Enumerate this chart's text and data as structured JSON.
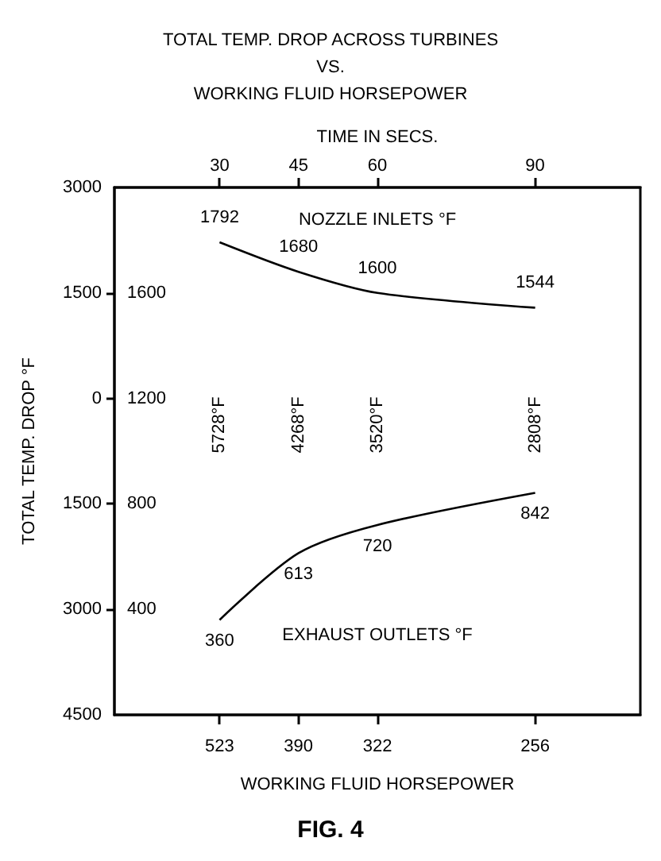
{
  "chart_data": {
    "type": "line",
    "title": "TOTAL TEMP. DROP ACROSS TURBINES\nVS.\nWORKING FLUID HORSEPOWER",
    "xlabel": "TIME IN SECS.",
    "y2label": "TOTAL TEMP. DROP °F",
    "x": [
      30,
      45,
      60,
      90
    ],
    "series": [
      {
        "name": "NOZZLE INLETS °F",
        "color": "#000000",
        "values": [
          1792,
          1680,
          1600,
          1544
        ]
      },
      {
        "name": "EXHAUST OUTLETS °F",
        "color": "#000000",
        "values": [
          360,
          613,
          720,
          842
        ]
      }
    ],
    "xlim": [
      10,
      110
    ],
    "xticks": [
      30,
      45,
      60,
      90
    ],
    "ylim": [
      0,
      2000
    ],
    "yticks": [
      400,
      800,
      1200,
      1600
    ],
    "y2lim": [
      -4500,
      3000
    ],
    "y2ticks": [
      {
        "value": -4500,
        "label": "4500"
      },
      {
        "value": -3000,
        "label": "3000"
      },
      {
        "value": -1500,
        "label": "1500"
      },
      0,
      1500,
      3000
    ],
    "annotations": [
      "5728°F",
      "4268°F",
      "3520°F",
      "2808°F",
      {
        "text": "523",
        "x": 30
      },
      {
        "text": "390",
        "x": 45
      },
      {
        "text": "322",
        "x": 60
      },
      {
        "text": "256",
        "x": 90
      },
      "WORKING FLUID HORSEPOWER",
      "FIG. 4"
    ],
    "data_labels": true,
    "marker": "none",
    "line_style": "solid",
    "grid": false,
    "legend": false
  }
}
